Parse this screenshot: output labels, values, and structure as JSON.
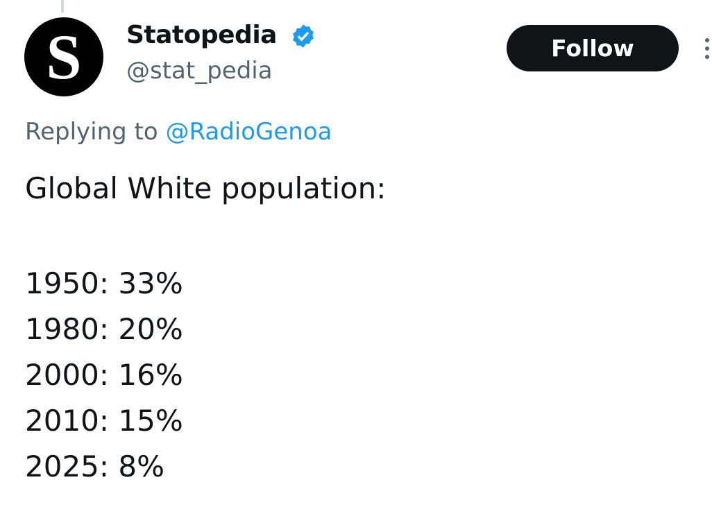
{
  "author": {
    "avatar_letter": "S",
    "name": "Statopedia",
    "handle": "@stat_pedia"
  },
  "follow_button": "Follow",
  "reply": {
    "prefix": "Replying to",
    "target": "@RadioGenoa"
  },
  "body": {
    "heading": "Global White population:",
    "lines": [
      "1950: 33%",
      "1980: 20%",
      "2000: 16%",
      "2010: 15%",
      "2025: 8%"
    ]
  }
}
